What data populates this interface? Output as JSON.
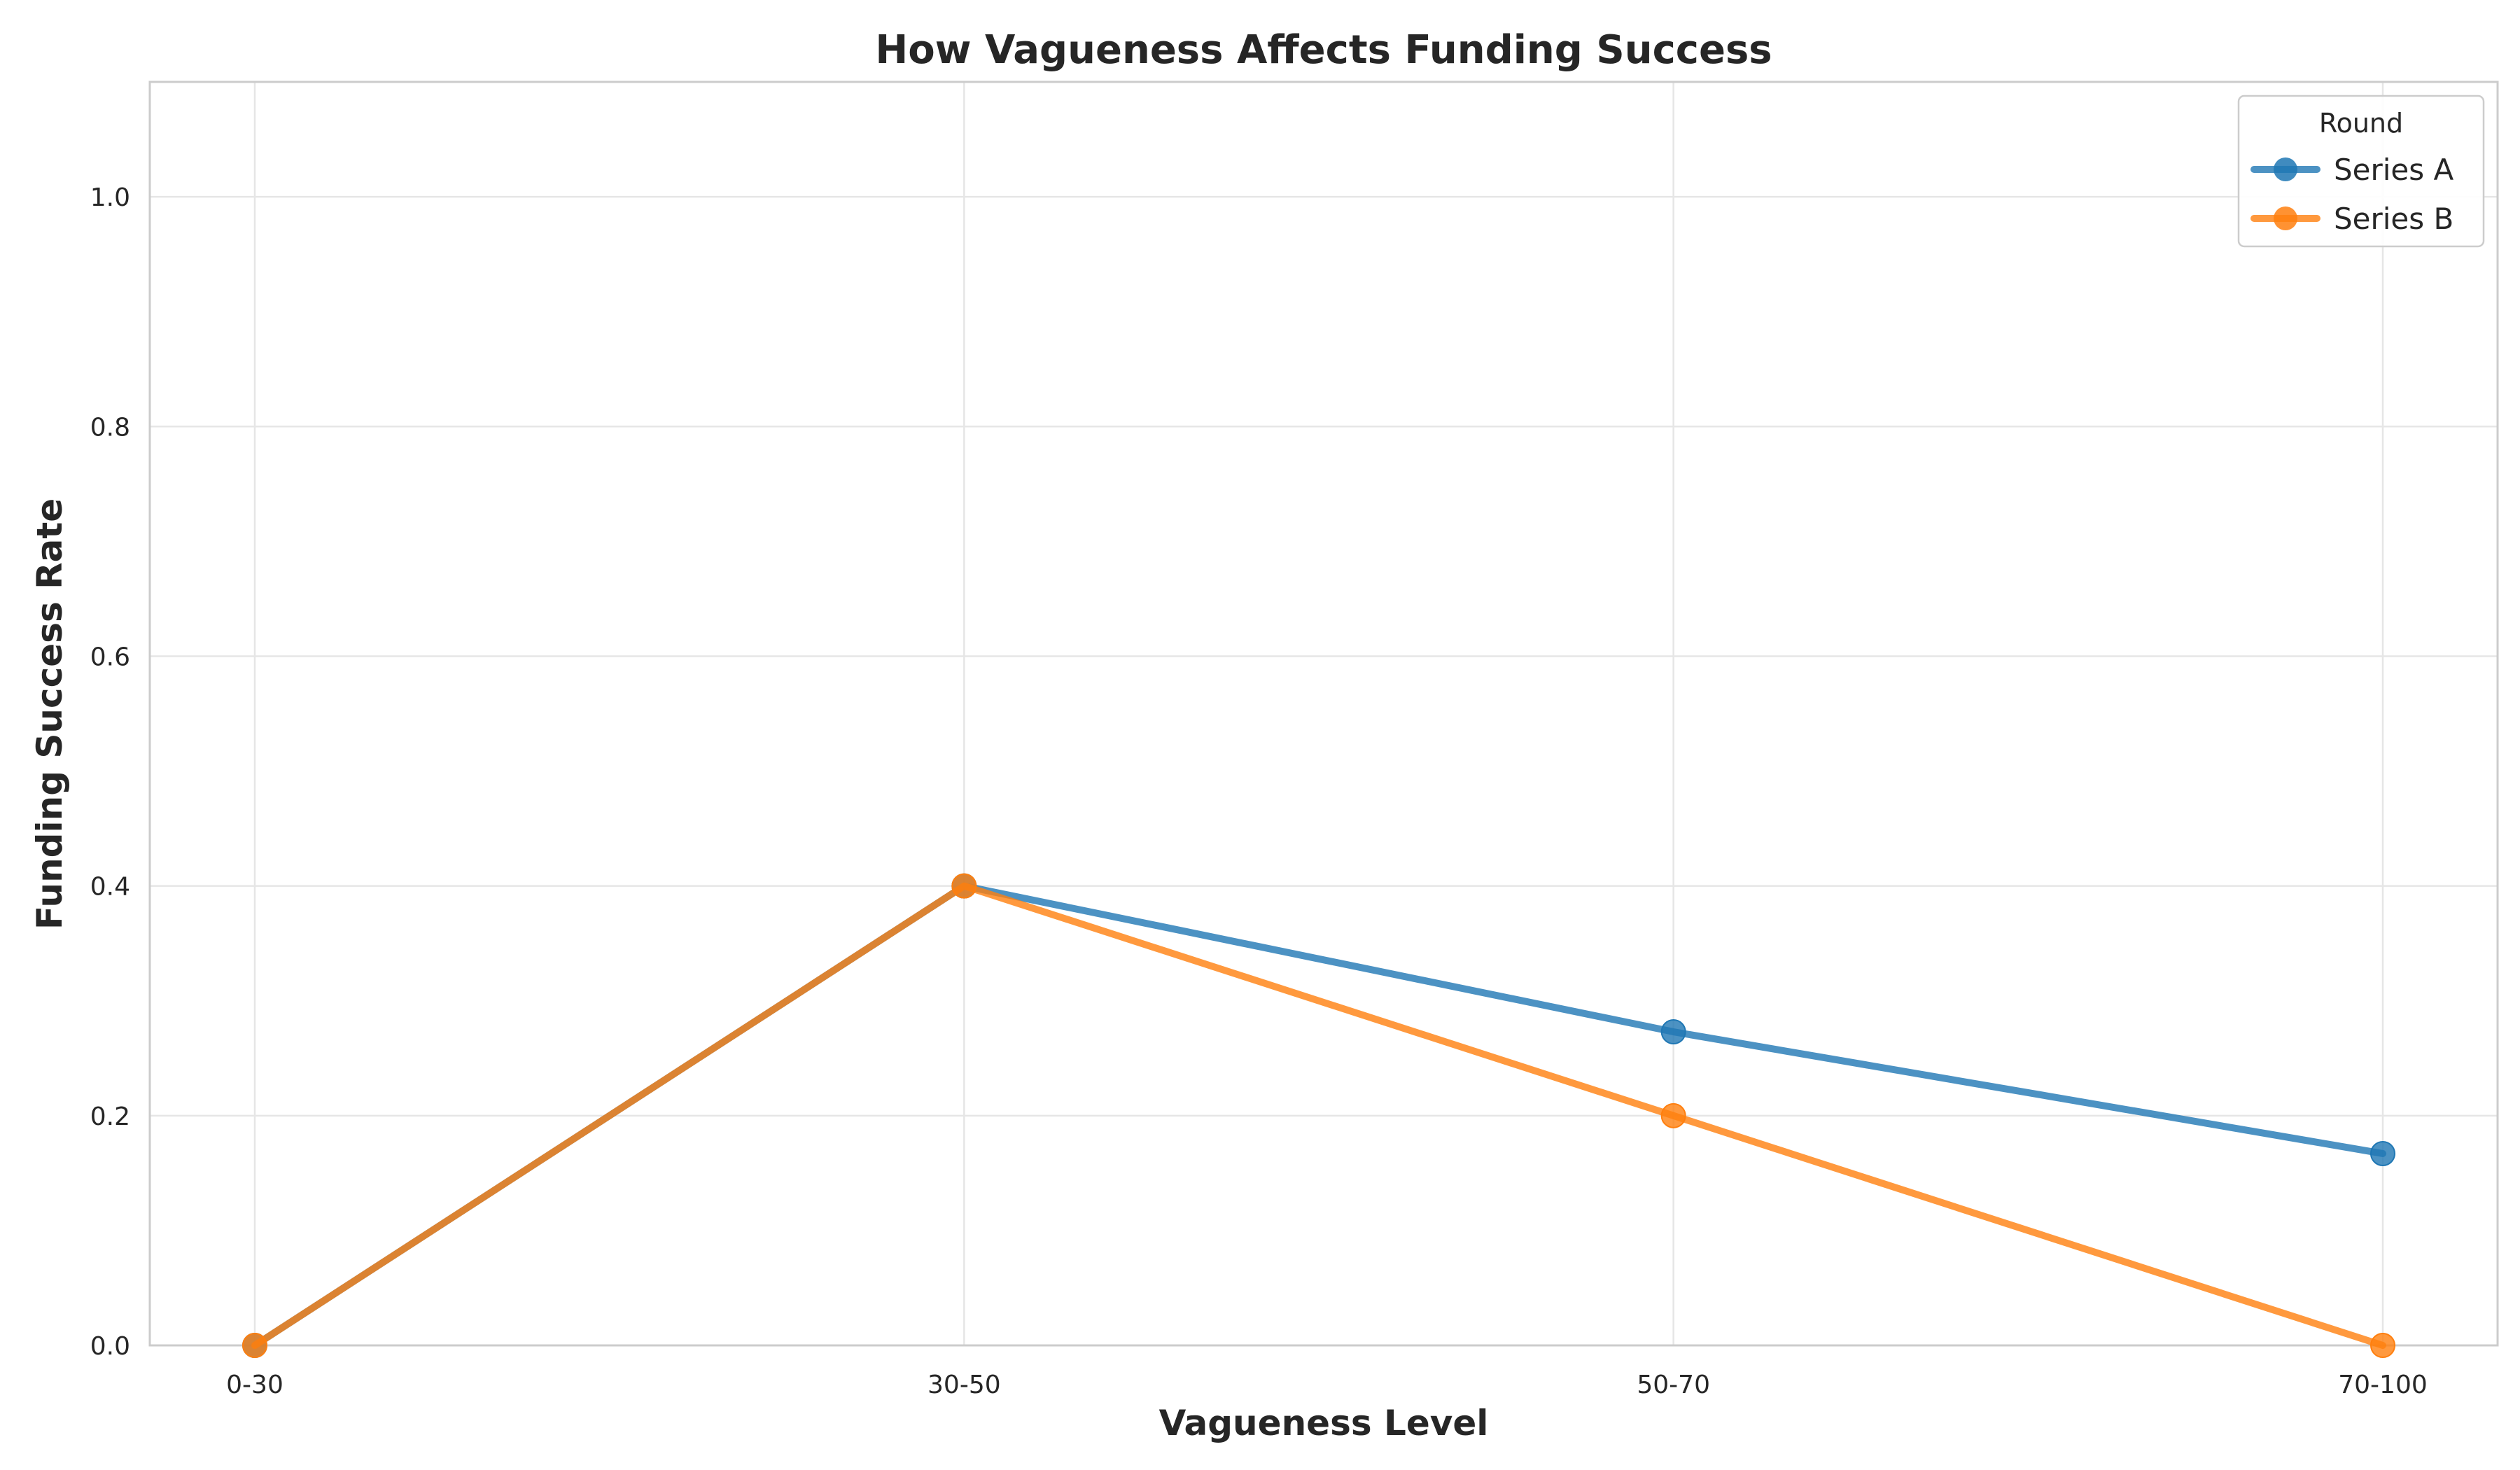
{
  "chart_data": {
    "type": "line",
    "title": "How Vagueness Affects Funding Success",
    "xlabel": "Vagueness Level",
    "ylabel": "Funding Success Rate",
    "categories": [
      "0-30",
      "30-50",
      "50-70",
      "70-100"
    ],
    "ylim": [
      0,
      1.1
    ],
    "yticks": [
      0.0,
      0.2,
      0.4,
      0.6,
      0.8,
      1.0
    ],
    "ytick_labels": [
      "0.0",
      "0.2",
      "0.4",
      "0.6",
      "0.8",
      "1.0"
    ],
    "grid": true,
    "legend": {
      "title": "Round",
      "placement": "top-right"
    },
    "series": [
      {
        "name": "Series A",
        "values": [
          0.0,
          0.4,
          0.273,
          0.167
        ],
        "color": "#1f77b4"
      },
      {
        "name": "Series B",
        "values": [
          0.0,
          0.4,
          0.2,
          0.0
        ],
        "color": "#ff7f0e"
      }
    ]
  }
}
